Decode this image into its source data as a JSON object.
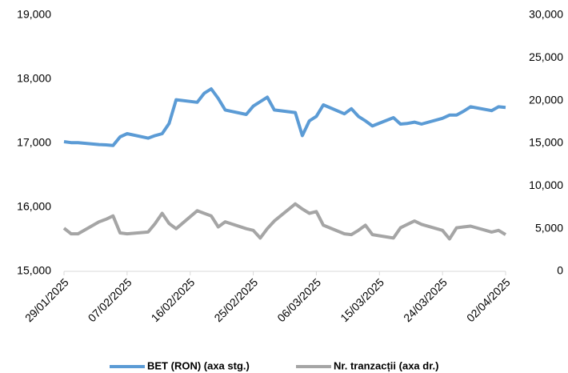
{
  "chart_data": {
    "type": "line",
    "x": [
      "29/01/2025",
      "30/01/2025",
      "31/01/2025",
      "03/02/2025",
      "04/02/2025",
      "05/02/2025",
      "06/02/2025",
      "07/02/2025",
      "10/02/2025",
      "11/02/2025",
      "12/02/2025",
      "13/02/2025",
      "14/02/2025",
      "17/02/2025",
      "18/02/2025",
      "19/02/2025",
      "20/02/2025",
      "21/02/2025",
      "24/02/2025",
      "25/02/2025",
      "26/02/2025",
      "27/02/2025",
      "28/02/2025",
      "03/03/2025",
      "04/03/2025",
      "05/03/2025",
      "06/03/2025",
      "07/03/2025",
      "10/03/2025",
      "11/03/2025",
      "12/03/2025",
      "13/03/2025",
      "14/03/2025",
      "17/03/2025",
      "18/03/2025",
      "19/03/2025",
      "20/03/2025",
      "21/03/2025",
      "24/03/2025",
      "25/03/2025",
      "26/03/2025",
      "27/03/2025",
      "28/03/2025",
      "31/03/2025",
      "01/04/2025",
      "02/04/2025"
    ],
    "series": [
      {
        "name": "BET (RON) (axa stg.)",
        "color": "#5b9bd5",
        "axis": "y",
        "values": [
          17025,
          17010,
          17010,
          16980,
          16975,
          16965,
          17100,
          17150,
          17080,
          17120,
          17150,
          17310,
          17680,
          17640,
          17780,
          17850,
          17700,
          17520,
          17450,
          17580,
          17650,
          17720,
          17520,
          17480,
          17120,
          17350,
          17420,
          17600,
          17460,
          17540,
          17420,
          17350,
          17270,
          17400,
          17300,
          17310,
          17330,
          17300,
          17390,
          17440,
          17440,
          17500,
          17570,
          17510,
          17570,
          17560
        ]
      },
      {
        "name": "Nr. tranzacții (axa dr.)",
        "color": "#a5a5a5",
        "axis": "y2",
        "values": [
          5050,
          4400,
          4400,
          5800,
          6100,
          6500,
          4500,
          4400,
          4600,
          5600,
          6800,
          5600,
          5000,
          7100,
          6800,
          6500,
          5200,
          5800,
          5000,
          4800,
          3900,
          5000,
          5900,
          7900,
          7300,
          6800,
          7000,
          5400,
          4400,
          4300,
          4800,
          5400,
          4300,
          3900,
          5100,
          5500,
          5900,
          5500,
          4800,
          3800,
          5100,
          5200,
          5300,
          4600,
          4800,
          4300
        ]
      }
    ],
    "xlim": [
      "29/01/2025",
      "02/04/2025"
    ],
    "xticks": [
      "29/01/2025",
      "07/02/2025",
      "16/02/2025",
      "25/02/2025",
      "06/03/2025",
      "15/03/2025",
      "24/03/2025",
      "02/04/2025"
    ],
    "ylim": [
      15000,
      19000
    ],
    "yticks": [
      {
        "value": 15000,
        "label": "15,000"
      },
      {
        "value": 16000,
        "label": "16,000"
      },
      {
        "value": 17000,
        "label": "17,000"
      },
      {
        "value": 18000,
        "label": "18,000"
      },
      {
        "value": 19000,
        "label": "19,000"
      }
    ],
    "y2lim": [
      0,
      30000
    ],
    "y2ticks": [
      0,
      {
        "value": 5000,
        "label": "5,000"
      },
      {
        "value": 10000,
        "label": "10,000"
      },
      {
        "value": 15000,
        "label": "15,000"
      },
      {
        "value": 20000,
        "label": "20,000"
      },
      {
        "value": 25000,
        "label": "25,000"
      },
      {
        "value": 30000,
        "label": "30,000"
      }
    ],
    "legend": "bottom"
  }
}
